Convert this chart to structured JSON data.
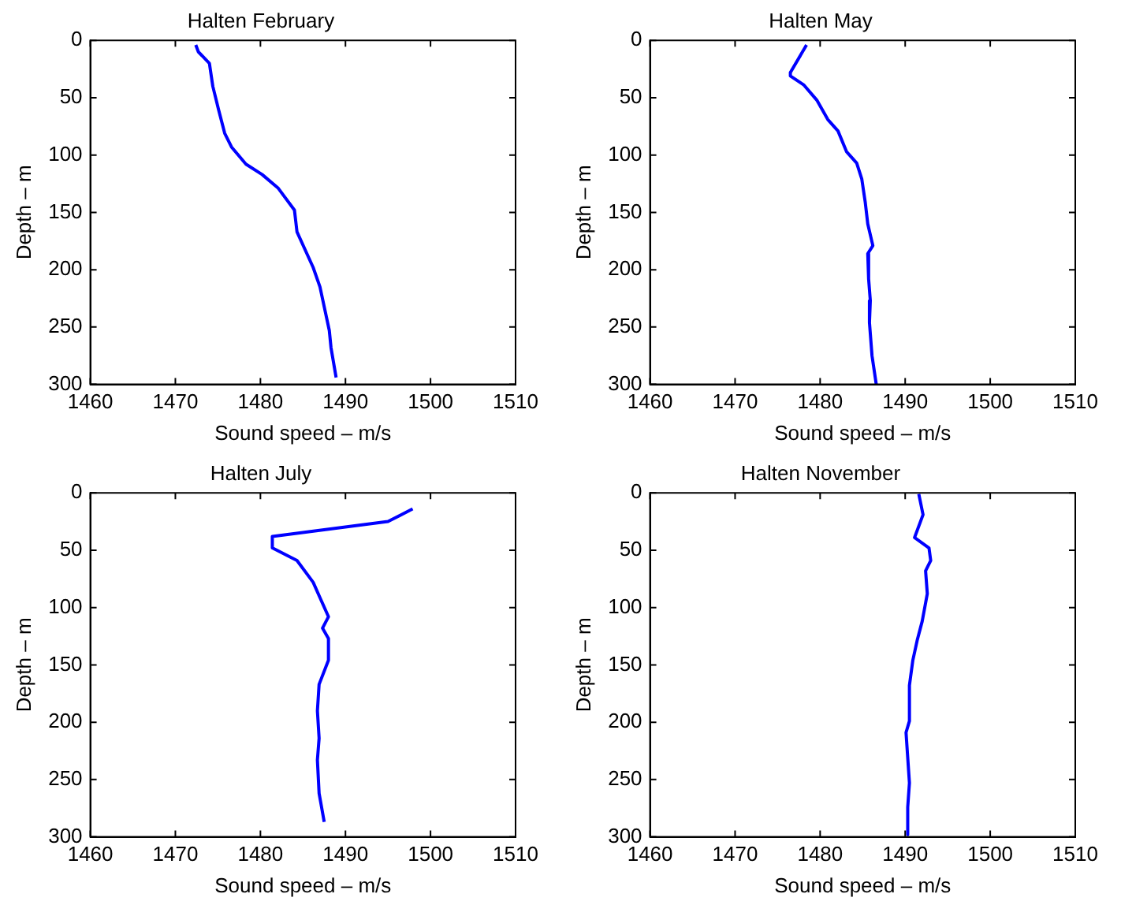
{
  "chart_data": [
    {
      "type": "line",
      "title": "Halten February",
      "xlabel": "Sound speed – m/s",
      "ylabel": "Depth – m",
      "xlim": [
        1460,
        1510
      ],
      "xticks": [
        1460,
        1470,
        1480,
        1490,
        1500,
        1510
      ],
      "ylim": [
        300,
        0
      ],
      "yticks": [
        0,
        50,
        100,
        150,
        200,
        250,
        300
      ],
      "grid": false,
      "legend": false,
      "marker": "none",
      "line_style": "solid",
      "series": [
        {
          "color": "#0000ff",
          "x": [
            1472.4,
            1472.7,
            1474.0,
            1474.4,
            1475.1,
            1475.8,
            1476.6,
            1478.3,
            1480.2,
            1482.1,
            1484.0,
            1484.3,
            1486.2,
            1487.0,
            1488.1,
            1488.3,
            1488.9
          ],
          "values": [
            4,
            10,
            20,
            40,
            61,
            81,
            93,
            108,
            117,
            129,
            148,
            167,
            198,
            215,
            253,
            268,
            294
          ]
        }
      ]
    },
    {
      "type": "line",
      "title": "Halten May",
      "xlabel": "Sound speed – m/s",
      "ylabel": "Depth – m",
      "xlim": [
        1460,
        1510
      ],
      "xticks": [
        1460,
        1470,
        1480,
        1490,
        1500,
        1510
      ],
      "ylim": [
        300,
        0
      ],
      "yticks": [
        0,
        50,
        100,
        150,
        200,
        250,
        300
      ],
      "grid": false,
      "legend": false,
      "marker": "none",
      "line_style": "solid",
      "series": [
        {
          "color": "#0000ff",
          "x": [
            1478.4,
            1476.5,
            1476.5,
            1478.1,
            1479.6,
            1480.9,
            1482.1,
            1483.1,
            1484.3,
            1484.9,
            1485.3,
            1485.6,
            1486.2,
            1485.6,
            1485.7,
            1485.9,
            1485.8,
            1486.1,
            1486.6
          ],
          "values": [
            4,
            28,
            31,
            39,
            52,
            69,
            79,
            97,
            107,
            121,
            141,
            160,
            179,
            186,
            208,
            227,
            246,
            275,
            300
          ]
        }
      ]
    },
    {
      "type": "line",
      "title": "Halten July",
      "xlabel": "Sound speed – m/s",
      "ylabel": "Depth – m",
      "xlim": [
        1460,
        1510
      ],
      "xticks": [
        1460,
        1470,
        1480,
        1490,
        1500,
        1510
      ],
      "ylim": [
        300,
        0
      ],
      "yticks": [
        0,
        50,
        100,
        150,
        200,
        250,
        300
      ],
      "grid": false,
      "legend": false,
      "marker": "none",
      "line_style": "solid",
      "series": [
        {
          "color": "#0000ff",
          "x": [
            1497.9,
            1495.0,
            1481.4,
            1481.4,
            1484.3,
            1486.2,
            1487.1,
            1488.0,
            1487.3,
            1488.0,
            1488.0,
            1486.9,
            1486.7,
            1486.9,
            1486.7,
            1486.9,
            1487.5
          ],
          "values": [
            14,
            25,
            38,
            48,
            59,
            78,
            93,
            108,
            118,
            127,
            146,
            167,
            190,
            214,
            233,
            262,
            287
          ]
        }
      ]
    },
    {
      "type": "line",
      "title": "Halten November",
      "xlabel": "Sound speed – m/s",
      "ylabel": "Depth – m",
      "xlim": [
        1460,
        1510
      ],
      "xticks": [
        1460,
        1470,
        1480,
        1490,
        1500,
        1510
      ],
      "ylim": [
        300,
        0
      ],
      "yticks": [
        0,
        50,
        100,
        150,
        200,
        250,
        300
      ],
      "grid": false,
      "legend": false,
      "marker": "none",
      "line_style": "solid",
      "series": [
        {
          "color": "#0000ff",
          "x": [
            1491.6,
            1492.1,
            1491.1,
            1492.8,
            1493.0,
            1492.4,
            1492.6,
            1492.0,
            1491.4,
            1490.9,
            1490.5,
            1490.5,
            1490.1,
            1490.5,
            1490.3,
            1490.3
          ],
          "values": [
            1,
            19,
            39,
            48,
            59,
            68,
            88,
            112,
            129,
            146,
            168,
            199,
            209,
            253,
            274,
            298
          ]
        }
      ]
    }
  ]
}
